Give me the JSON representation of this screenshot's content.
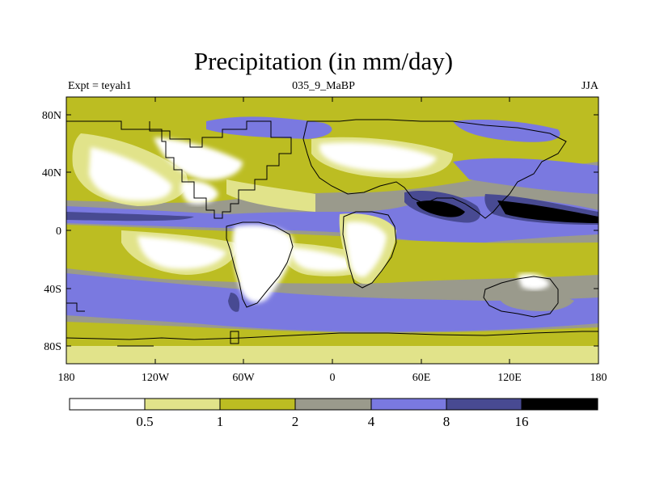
{
  "header": {
    "title": "Precipitation (in mm/day)",
    "left_label": "Expt = teyah1",
    "center_label": "035_9_MaBP",
    "right_label": "JJA"
  },
  "axes": {
    "lat_ticks": [
      "80N",
      "40N",
      "0",
      "40S",
      "80S"
    ],
    "lon_ticks": [
      "180",
      "120W",
      "60W",
      "0",
      "60E",
      "120E",
      "180"
    ]
  },
  "colorbar": {
    "colors": [
      "#ffffff",
      "#e1e38a",
      "#bcbd22",
      "#9a9a8c",
      "#7a79e0",
      "#484a92",
      "#000000"
    ],
    "labels": [
      "0.5",
      "1",
      "2",
      "4",
      "8",
      "16"
    ]
  },
  "colors": {
    "very_low": "#ffffff",
    "low": "#e1e38a",
    "moderate": "#bcbd22",
    "medium": "#9a9a8c",
    "high": "#7a79e0",
    "very_high": "#484a92",
    "extreme": "#000000"
  }
}
